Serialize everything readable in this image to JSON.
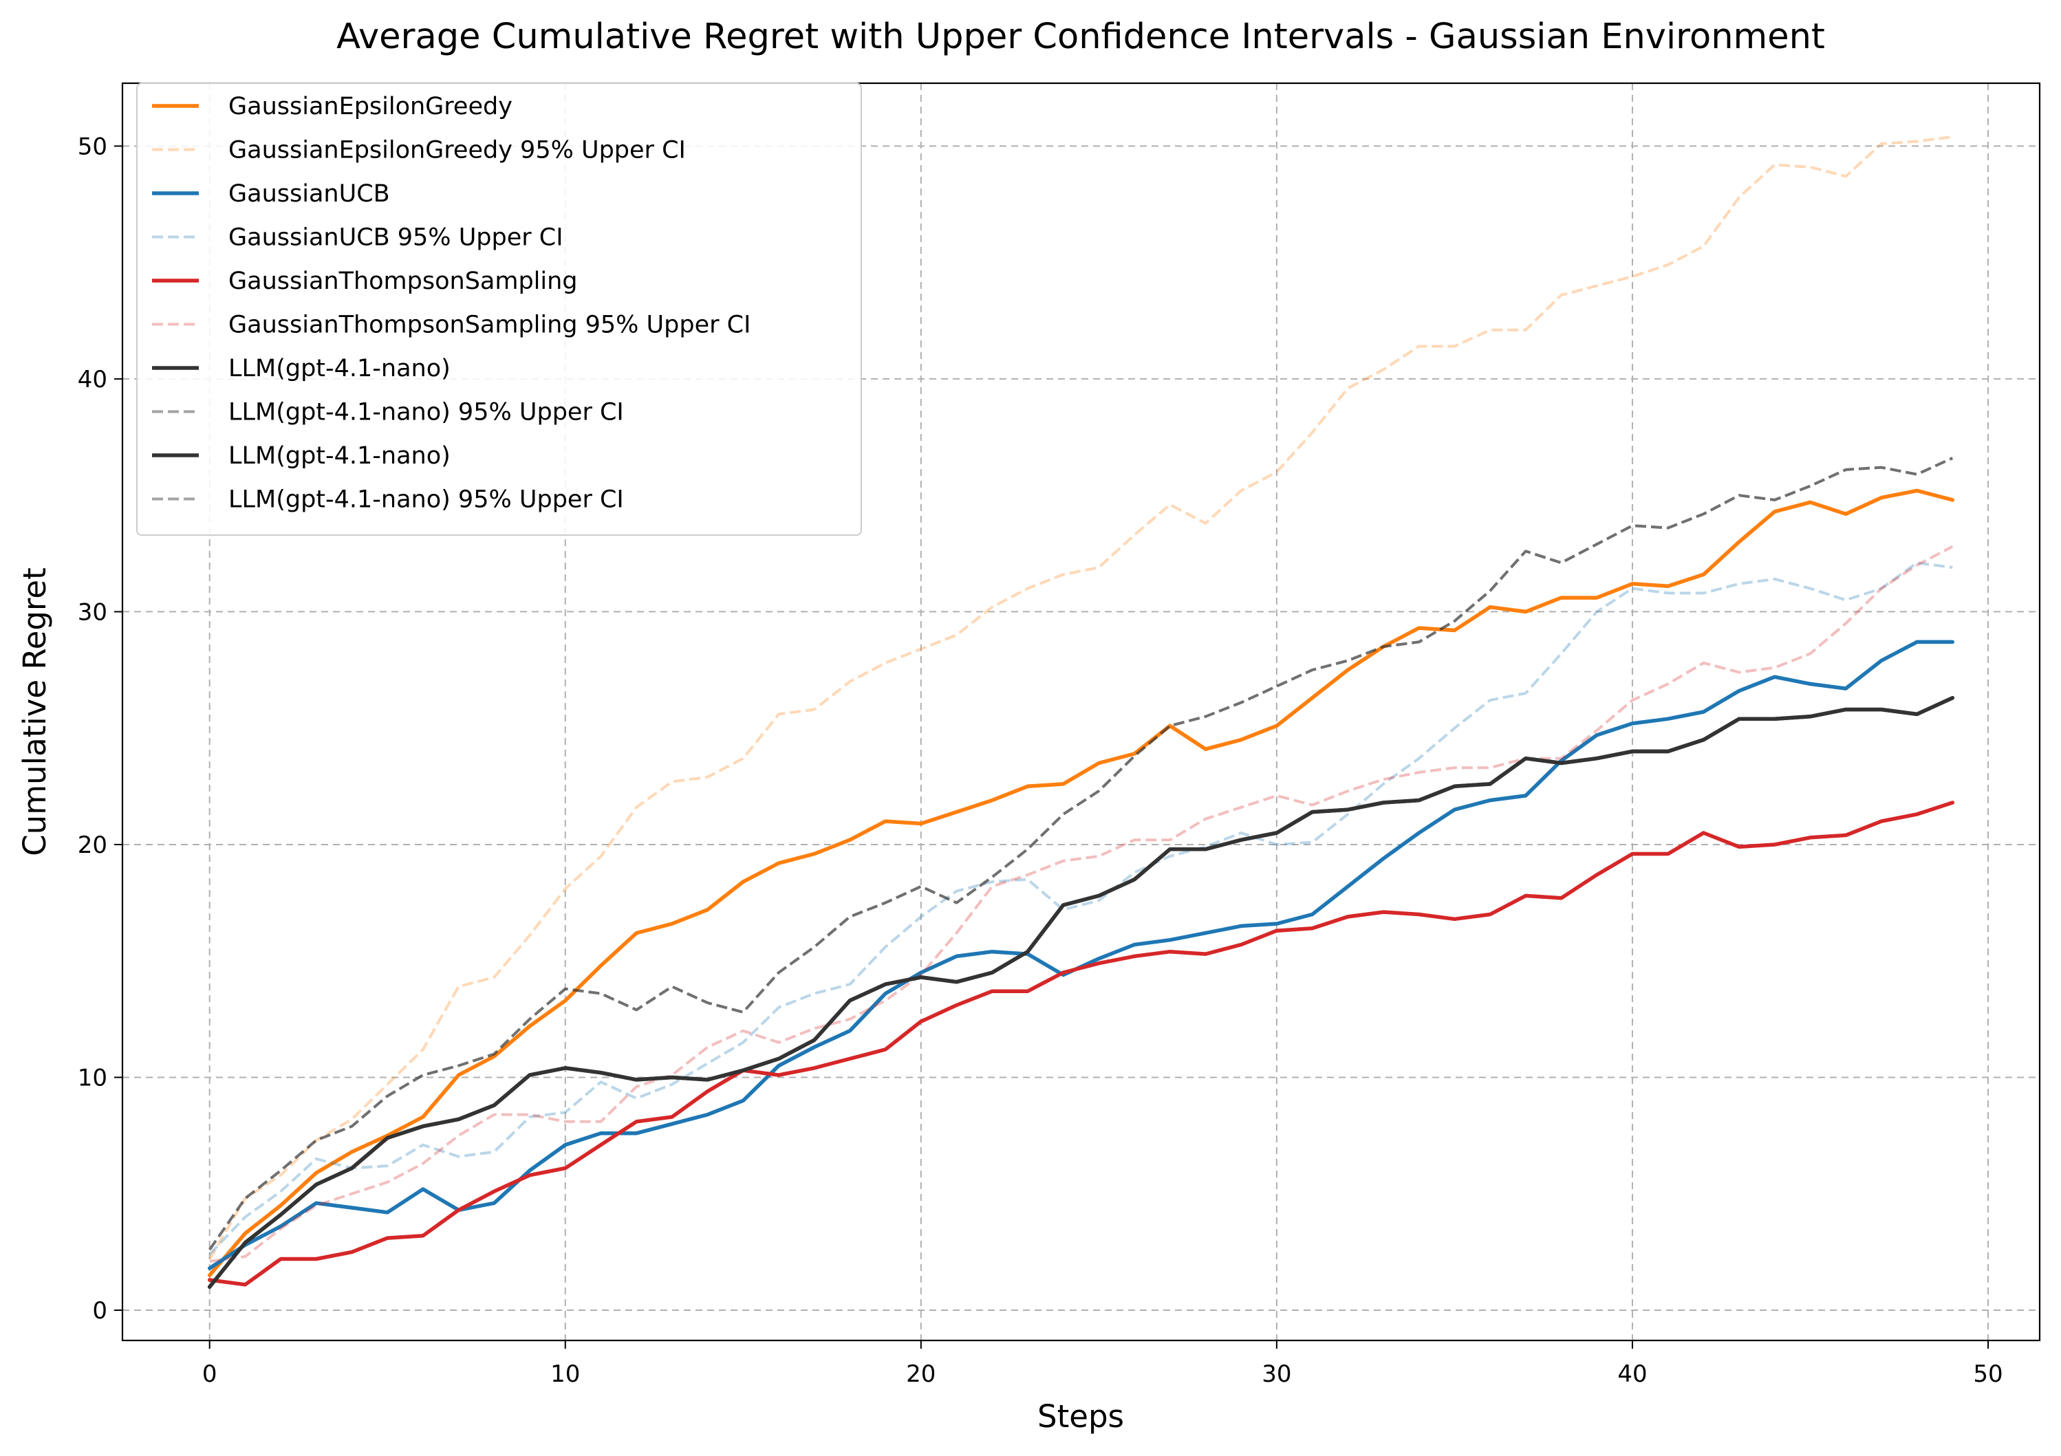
{
  "chart_data": {
    "type": "line",
    "title": "Average Cumulative Regret with Upper Confidence Intervals - Gaussian Environment",
    "xlabel": "Steps",
    "ylabel": "Cumulative Regret",
    "xlim": [
      -2.45,
      51.45
    ],
    "ylim": [
      -1.3,
      52.7
    ],
    "xticks": [
      0,
      10,
      20,
      30,
      40,
      50
    ],
    "yticks": [
      0,
      10,
      20,
      30,
      40,
      50
    ],
    "grid": true,
    "legend_position": "top-left",
    "x": [
      0,
      1,
      2,
      3,
      4,
      5,
      6,
      7,
      8,
      9,
      10,
      11,
      12,
      13,
      14,
      15,
      16,
      17,
      18,
      19,
      20,
      21,
      22,
      23,
      24,
      25,
      26,
      27,
      28,
      29,
      30,
      31,
      32,
      33,
      34,
      35,
      36,
      37,
      38,
      39,
      40,
      41,
      42,
      43,
      44,
      45,
      46,
      47,
      48,
      49
    ],
    "series": [
      {
        "name": "GaussianEpsilonGreedy",
        "color": "#ff7f0e",
        "style": "solid",
        "opacity": 1,
        "values": [
          1.5,
          3.3,
          4.5,
          5.9,
          6.8,
          7.5,
          8.3,
          10.1,
          10.9,
          12.2,
          13.3,
          14.8,
          16.2,
          16.6,
          17.2,
          18.4,
          19.2,
          19.6,
          20.2,
          21.0,
          20.9,
          21.4,
          21.9,
          22.5,
          22.6,
          23.5,
          23.9,
          25.1,
          24.1,
          24.5,
          25.1,
          26.3,
          27.5,
          28.5,
          29.3,
          29.2,
          30.2,
          30.0,
          30.6,
          30.6,
          31.2,
          31.1,
          31.6,
          33.0,
          34.3,
          34.7,
          34.2,
          34.9,
          35.2,
          34.8
        ]
      },
      {
        "name": "GaussianEpsilonGreedy 95% Upper CI",
        "color": "#ff7f0e",
        "style": "dashed",
        "opacity": 0.3,
        "values": [
          2.2,
          4.8,
          5.8,
          7.3,
          8.2,
          9.7,
          11.2,
          13.9,
          14.3,
          16.1,
          18.1,
          19.5,
          21.6,
          22.7,
          22.9,
          23.7,
          25.6,
          25.8,
          27.0,
          27.8,
          28.4,
          29.0,
          30.2,
          31.0,
          31.6,
          31.9,
          33.3,
          34.6,
          33.8,
          35.2,
          36.0,
          37.7,
          39.6,
          40.4,
          41.4,
          41.4,
          42.1,
          42.1,
          43.6,
          44.0,
          44.4,
          44.9,
          45.7,
          47.8,
          49.2,
          49.1,
          48.7,
          50.1,
          50.2,
          50.4
        ]
      },
      {
        "name": "GaussianUCB",
        "color": "#1f77b4",
        "style": "solid",
        "opacity": 1,
        "values": [
          1.8,
          2.8,
          3.6,
          4.6,
          4.4,
          4.2,
          5.2,
          4.3,
          4.6,
          6.0,
          7.1,
          7.6,
          7.6,
          8.0,
          8.4,
          9.0,
          10.5,
          11.3,
          12.0,
          13.6,
          14.5,
          15.2,
          15.4,
          15.3,
          14.4,
          15.1,
          15.7,
          15.9,
          16.2,
          16.5,
          16.6,
          17.0,
          18.2,
          19.4,
          20.5,
          21.5,
          21.9,
          22.1,
          23.6,
          24.7,
          25.2,
          25.4,
          25.7,
          26.6,
          27.2,
          26.9,
          26.7,
          27.9,
          28.7,
          28.7
        ]
      },
      {
        "name": "GaussianUCB 95% Upper CI",
        "color": "#1f77b4",
        "style": "dashed",
        "opacity": 0.3,
        "values": [
          2.4,
          4.0,
          5.1,
          6.5,
          6.1,
          6.2,
          7.1,
          6.6,
          6.8,
          8.3,
          8.5,
          9.8,
          9.1,
          9.7,
          10.6,
          11.5,
          13.0,
          13.6,
          14.0,
          15.6,
          16.9,
          18.0,
          18.4,
          18.5,
          17.2,
          17.6,
          18.8,
          19.5,
          19.9,
          20.5,
          20.0,
          20.1,
          21.3,
          22.6,
          23.7,
          25.0,
          26.2,
          26.5,
          28.2,
          30.0,
          31.0,
          30.8,
          30.8,
          31.2,
          31.4,
          31.0,
          30.5,
          31.0,
          32.1,
          31.9
        ]
      },
      {
        "name": "GaussianThompsonSampling",
        "color": "#d62728",
        "style": "solid",
        "opacity": 1,
        "values": [
          1.3,
          1.1,
          2.2,
          2.2,
          2.5,
          3.1,
          3.2,
          4.3,
          5.1,
          5.8,
          6.1,
          7.1,
          8.1,
          8.3,
          9.4,
          10.3,
          10.1,
          10.4,
          10.8,
          11.2,
          12.4,
          13.1,
          13.7,
          13.7,
          14.5,
          14.9,
          15.2,
          15.4,
          15.3,
          15.7,
          16.3,
          16.4,
          16.9,
          17.1,
          17.0,
          16.8,
          17.0,
          17.8,
          17.7,
          18.7,
          19.6,
          19.6,
          20.5,
          19.9,
          20.0,
          20.3,
          20.4,
          21.0,
          21.3,
          21.8
        ]
      },
      {
        "name": "GaussianThompsonSampling 95% Upper CI",
        "color": "#d62728",
        "style": "dashed",
        "opacity": 0.3,
        "values": [
          2.1,
          2.3,
          3.5,
          4.5,
          5.0,
          5.5,
          6.3,
          7.5,
          8.4,
          8.4,
          8.1,
          8.1,
          9.6,
          10.1,
          11.3,
          12.0,
          11.5,
          12.1,
          12.5,
          13.3,
          14.4,
          16.2,
          18.2,
          18.7,
          19.3,
          19.5,
          20.2,
          20.2,
          21.1,
          21.6,
          22.1,
          21.7,
          22.3,
          22.8,
          23.1,
          23.3,
          23.3,
          23.7,
          23.7,
          24.9,
          26.2,
          26.9,
          27.8,
          27.4,
          27.6,
          28.2,
          29.5,
          31.0,
          32.0,
          32.8
        ]
      },
      {
        "name": "LLM(gpt-4.1-nano)",
        "color": "#333333",
        "style": "solid",
        "opacity": 1,
        "values": [
          1.0,
          2.9,
          4.1,
          5.4,
          6.1,
          7.4,
          7.9,
          8.2,
          8.8,
          10.1,
          10.4,
          10.2,
          9.9,
          10.0,
          9.9,
          10.3,
          10.8,
          11.6,
          13.3,
          14.0,
          14.3,
          14.1,
          14.5,
          15.4,
          17.4,
          17.8,
          18.5,
          19.8,
          19.8,
          20.2,
          20.5,
          21.4,
          21.5,
          21.8,
          21.9,
          22.5,
          22.6,
          23.7,
          23.5,
          23.7,
          24.0,
          24.0,
          24.5,
          25.4,
          25.4,
          25.5,
          25.8,
          25.8,
          25.6,
          26.3
        ]
      },
      {
        "name": "LLM(gpt-4.1-nano) 95% Upper CI",
        "color": "#333333",
        "style": "dashed",
        "opacity": 0.45,
        "values": [
          2.6,
          4.8,
          6.0,
          7.3,
          7.9,
          9.2,
          10.1,
          10.5,
          11.0,
          12.5,
          13.8,
          13.6,
          12.9,
          13.9,
          13.2,
          12.8,
          14.5,
          15.6,
          16.9,
          17.5,
          18.2,
          17.5,
          18.6,
          19.8,
          21.3,
          22.3,
          23.8,
          25.1,
          25.5,
          26.1,
          26.8,
          27.5,
          27.9,
          28.5,
          28.7,
          29.6,
          30.9,
          32.6,
          32.1,
          32.9,
          33.7,
          33.6,
          34.2,
          35.0,
          34.8,
          35.4,
          36.1,
          36.2,
          35.9,
          36.6
        ]
      },
      {
        "name": "LLM(gpt-4.1-nano)",
        "color": "#333333",
        "style": "solid",
        "opacity": 1,
        "values": [
          1.0,
          2.9,
          4.1,
          5.4,
          6.1,
          7.4,
          7.9,
          8.2,
          8.8,
          10.1,
          10.4,
          10.2,
          9.9,
          10.0,
          9.9,
          10.3,
          10.8,
          11.6,
          13.3,
          14.0,
          14.3,
          14.1,
          14.5,
          15.4,
          17.4,
          17.8,
          18.5,
          19.8,
          19.8,
          20.2,
          20.5,
          21.4,
          21.5,
          21.8,
          21.9,
          22.5,
          22.6,
          23.7,
          23.5,
          23.7,
          24.0,
          24.0,
          24.5,
          25.4,
          25.4,
          25.5,
          25.8,
          25.8,
          25.6,
          26.3
        ]
      },
      {
        "name": "LLM(gpt-4.1-nano) 95% Upper CI",
        "color": "#333333",
        "style": "dashed",
        "opacity": 0.45,
        "values": [
          2.6,
          4.8,
          6.0,
          7.3,
          7.9,
          9.2,
          10.1,
          10.5,
          11.0,
          12.5,
          13.8,
          13.6,
          12.9,
          13.9,
          13.2,
          12.8,
          14.5,
          15.6,
          16.9,
          17.5,
          18.2,
          17.5,
          18.6,
          19.8,
          21.3,
          22.3,
          23.8,
          25.1,
          25.5,
          26.1,
          26.8,
          27.5,
          27.9,
          28.5,
          28.7,
          29.6,
          30.9,
          32.6,
          32.1,
          32.9,
          33.7,
          33.6,
          34.2,
          35.0,
          34.8,
          35.4,
          36.1,
          36.2,
          35.9,
          36.6
        ]
      }
    ]
  }
}
